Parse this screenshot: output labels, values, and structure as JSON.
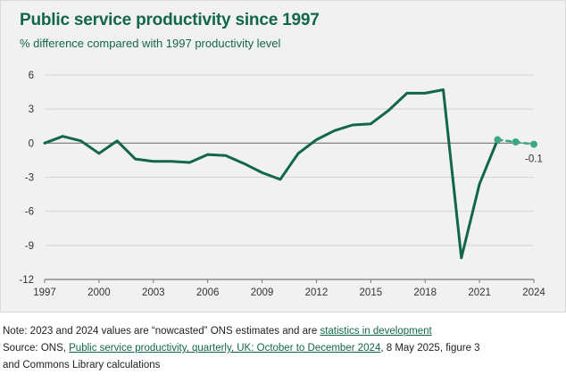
{
  "chart_data": {
    "type": "line",
    "title": "Public service productivity since 1997",
    "subtitle": "% difference compared with 1997 productivity level",
    "xlabel": "",
    "ylabel": "",
    "xlim": [
      1997,
      2024
    ],
    "ylim": [
      -12,
      6
    ],
    "yticks": [
      6,
      3,
      0,
      -3,
      -6,
      -9,
      -12
    ],
    "yticks_labels": [
      "6",
      "3",
      "0",
      "-3",
      "-6",
      "-9",
      "-12"
    ],
    "xticks": [
      1997,
      2000,
      2003,
      2006,
      2009,
      2012,
      2015,
      2018,
      2021,
      2024
    ],
    "xticks_labels": [
      "1997",
      "2000",
      "2003",
      "2006",
      "2009",
      "2012",
      "2015",
      "2018",
      "2021",
      "2024"
    ],
    "grid": "horizontal",
    "series": [
      {
        "name": "Public service productivity",
        "color": "#12664a",
        "style": "solid",
        "x": [
          1997,
          1998,
          1999,
          2000,
          2001,
          2002,
          2003,
          2004,
          2005,
          2006,
          2007,
          2008,
          2009,
          2010,
          2011,
          2012,
          2013,
          2014,
          2015,
          2016,
          2017,
          2018,
          2019,
          2020,
          2021,
          2022
        ],
        "y": [
          0,
          0.6,
          0.2,
          -0.9,
          0.2,
          -1.4,
          -1.6,
          -1.6,
          -1.7,
          -1.0,
          -1.1,
          -1.8,
          -2.6,
          -3.2,
          -0.9,
          0.3,
          1.1,
          1.6,
          1.7,
          2.9,
          4.4,
          4.4,
          4.7,
          -10.1,
          -3.6,
          0.3
        ]
      },
      {
        "name": "Nowcast",
        "color": "#3aa886",
        "style": "dashed",
        "x": [
          2022,
          2023,
          2024
        ],
        "y": [
          0.3,
          0.1,
          -0.1
        ]
      }
    ],
    "annotations": [
      {
        "x": 2024,
        "y": -0.1,
        "text": "-0.1"
      }
    ]
  },
  "notes": {
    "line1_prefix": "Note: 2023 and 2024 values are “nowcasted” ONS estimates and are ",
    "line1_link": "statistics in development",
    "line2_prefix": "Source: ONS, ",
    "line2_link": "Public service productivity, quarterly, UK: October to December 2024",
    "line2_suffix": ", 8 May 2025, figure 3",
    "line3": "and Commons Library calculations"
  },
  "colors": {
    "main_line": "#12664a",
    "nowcast": "#3aa886",
    "grid": "#d4d4d4",
    "axis": "#777777",
    "title": "#12664a"
  }
}
